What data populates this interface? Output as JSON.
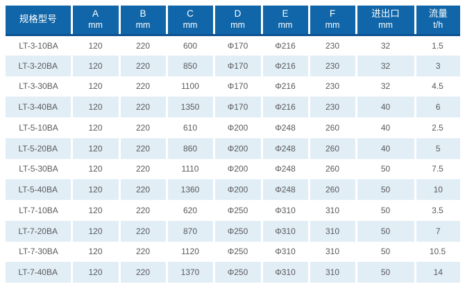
{
  "colors": {
    "header_bg": "#1066a8",
    "header_border_bottom": "#0b5190",
    "header_text": "#ffffff",
    "row_alt_bg": "#e2eef6",
    "row_bg": "#ffffff",
    "body_text": "#58595b",
    "separator": "#ffffff",
    "page_bg": "#ffffff"
  },
  "table": {
    "headers": [
      {
        "line1": "规格型号",
        "line2": ""
      },
      {
        "line1": "A",
        "line2": "mm"
      },
      {
        "line1": "B",
        "line2": "mm"
      },
      {
        "line1": "C",
        "line2": "mm"
      },
      {
        "line1": "D",
        "line2": "mm"
      },
      {
        "line1": "E",
        "line2": "mm"
      },
      {
        "line1": "F",
        "line2": "mm"
      },
      {
        "line1": "进出口",
        "line2": "mm"
      },
      {
        "line1": "流量",
        "line2": "t/h"
      }
    ],
    "rows": [
      [
        "LT-3-10BA",
        "120",
        "220",
        "600",
        "Φ170",
        "Φ216",
        "230",
        "32",
        "1.5"
      ],
      [
        "LT-3-20BA",
        "120",
        "220",
        "850",
        "Φ170",
        "Φ216",
        "230",
        "32",
        "3"
      ],
      [
        "LT-3-30BA",
        "120",
        "220",
        "1100",
        "Φ170",
        "Φ216",
        "230",
        "32",
        "4.5"
      ],
      [
        "LT-3-40BA",
        "120",
        "220",
        "1350",
        "Φ170",
        "Φ216",
        "230",
        "40",
        "6"
      ],
      [
        "LT-5-10BA",
        "120",
        "220",
        "610",
        "Φ200",
        "Φ248",
        "260",
        "40",
        "2.5"
      ],
      [
        "LT-5-20BA",
        "120",
        "220",
        "860",
        "Φ200",
        "Φ248",
        "260",
        "40",
        "5"
      ],
      [
        "LT-5-30BA",
        "120",
        "220",
        "1110",
        "Φ200",
        "Φ248",
        "260",
        "50",
        "7.5"
      ],
      [
        "LT-5-40BA",
        "120",
        "220",
        "1360",
        "Φ200",
        "Φ248",
        "260",
        "50",
        "10"
      ],
      [
        "LT-7-10BA",
        "120",
        "220",
        "620",
        "Φ250",
        "Φ310",
        "310",
        "50",
        "3.5"
      ],
      [
        "LT-7-20BA",
        "120",
        "220",
        "870",
        "Φ250",
        "Φ310",
        "310",
        "50",
        "7"
      ],
      [
        "LT-7-30BA",
        "120",
        "220",
        "1120",
        "Φ250",
        "Φ310",
        "310",
        "50",
        "10.5"
      ],
      [
        "LT-7-40BA",
        "120",
        "220",
        "1370",
        "Φ250",
        "Φ310",
        "310",
        "50",
        "14"
      ]
    ]
  },
  "chart_data": {
    "type": "table",
    "columns": [
      "规格型号",
      "A mm",
      "B mm",
      "C mm",
      "D mm",
      "E mm",
      "F mm",
      "进出口 mm",
      "流量 t/h"
    ],
    "rows": [
      [
        "LT-3-10BA",
        120,
        220,
        600,
        "Φ170",
        "Φ216",
        230,
        32,
        1.5
      ],
      [
        "LT-3-20BA",
        120,
        220,
        850,
        "Φ170",
        "Φ216",
        230,
        32,
        3
      ],
      [
        "LT-3-30BA",
        120,
        220,
        1100,
        "Φ170",
        "Φ216",
        230,
        32,
        4.5
      ],
      [
        "LT-3-40BA",
        120,
        220,
        1350,
        "Φ170",
        "Φ216",
        230,
        40,
        6
      ],
      [
        "LT-5-10BA",
        120,
        220,
        610,
        "Φ200",
        "Φ248",
        260,
        40,
        2.5
      ],
      [
        "LT-5-20BA",
        120,
        220,
        860,
        "Φ200",
        "Φ248",
        260,
        40,
        5
      ],
      [
        "LT-5-30BA",
        120,
        220,
        1110,
        "Φ200",
        "Φ248",
        260,
        50,
        7.5
      ],
      [
        "LT-5-40BA",
        120,
        220,
        1360,
        "Φ200",
        "Φ248",
        260,
        50,
        10
      ],
      [
        "LT-7-10BA",
        120,
        220,
        620,
        "Φ250",
        "Φ310",
        310,
        50,
        3.5
      ],
      [
        "LT-7-20BA",
        120,
        220,
        870,
        "Φ250",
        "Φ310",
        310,
        50,
        7
      ],
      [
        "LT-7-30BA",
        120,
        220,
        1120,
        "Φ250",
        "Φ310",
        310,
        50,
        10.5
      ],
      [
        "LT-7-40BA",
        120,
        220,
        1370,
        "Φ250",
        "Φ310",
        310,
        50,
        14
      ]
    ]
  }
}
